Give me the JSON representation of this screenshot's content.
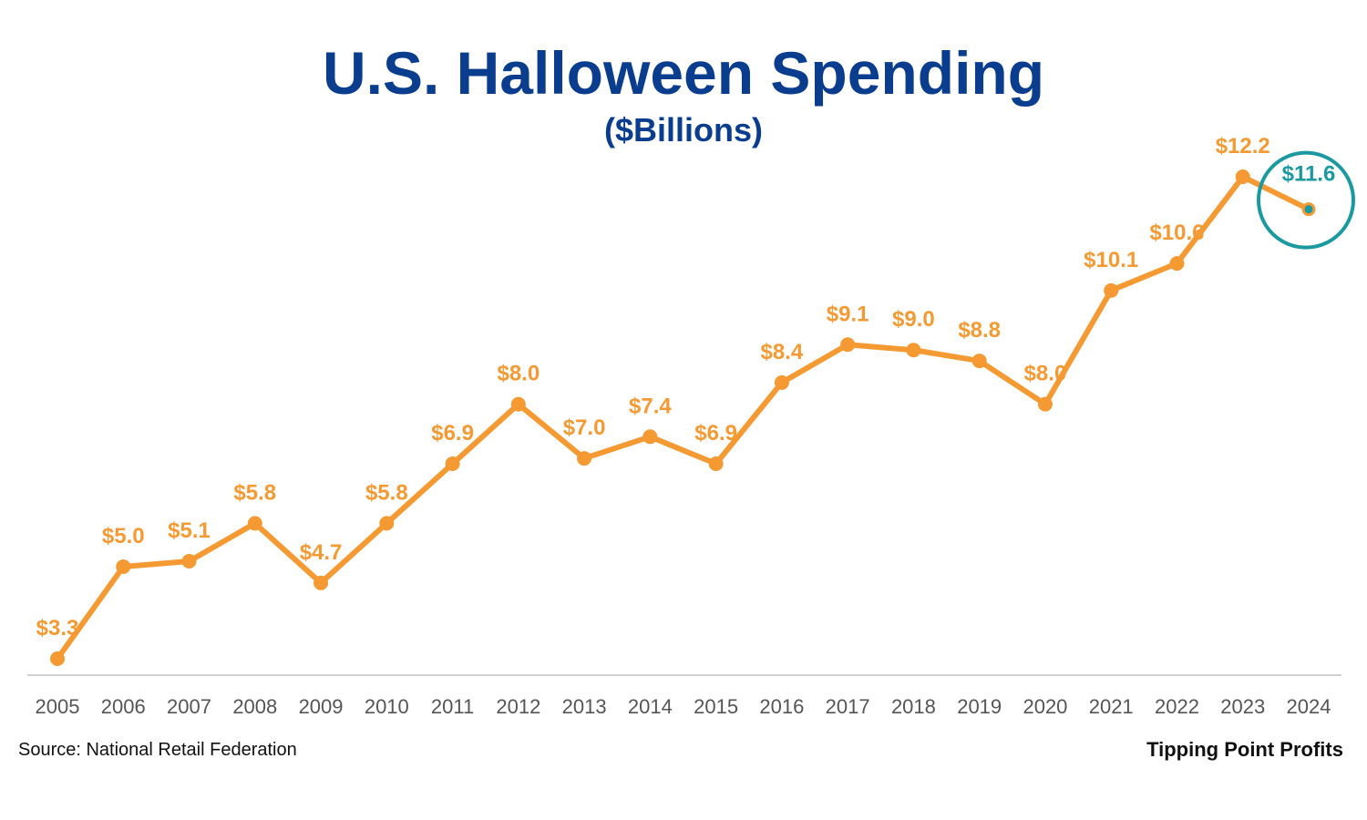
{
  "colors": {
    "title": "#0b3d8f",
    "line": "#f59a32",
    "label": "#f59a32",
    "highlight": "#1a9aa0",
    "axis": "#d0d0d0"
  },
  "footer": {
    "source": "Source: National Retail Federation",
    "brand": "Tipping Point Profits"
  },
  "chart_data": {
    "type": "line",
    "title": "U.S. Halloween Spending",
    "subtitle": "($Billions)",
    "xlabel": "",
    "ylabel": "",
    "grid": false,
    "legend": "none",
    "ylim": [
      3.3,
      12.2
    ],
    "categories": [
      "2005",
      "2006",
      "2007",
      "2008",
      "2009",
      "2010",
      "2011",
      "2012",
      "2013",
      "2014",
      "2015",
      "2016",
      "2017",
      "2018",
      "2019",
      "2020",
      "2021",
      "2022",
      "2023",
      "2024"
    ],
    "values": [
      3.3,
      5.0,
      5.1,
      5.8,
      4.7,
      5.8,
      6.9,
      8.0,
      7.0,
      7.4,
      6.9,
      8.4,
      9.1,
      9.0,
      8.8,
      8.0,
      10.1,
      10.6,
      12.2,
      11.6
    ],
    "labels": [
      "$3.3",
      "$5.0",
      "$5.1",
      "$5.8",
      "$4.7",
      "$5.8",
      "$6.9",
      "$8.0",
      "$7.0",
      "$7.4",
      "$6.9",
      "$8.4",
      "$9.1",
      "$9.0",
      "$8.8",
      "$8.0",
      "$10.1",
      "$10.6",
      "$12.2",
      "$11.6"
    ],
    "highlight_index": 19
  }
}
